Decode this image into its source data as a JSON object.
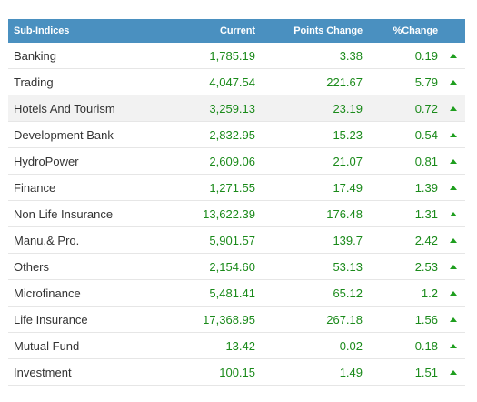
{
  "table": {
    "headers": {
      "name": "Sub-Indices",
      "current": "Current",
      "points_change": "Points Change",
      "pct_change": "%Change"
    },
    "trend_icon": "up-arrow-icon",
    "up_color": "#1e9e1e",
    "header_color": "#4a90c0",
    "rows": [
      {
        "name": "Banking",
        "current": "1,785.19",
        "points": "3.38",
        "pct": "0.19"
      },
      {
        "name": "Trading",
        "current": "4,047.54",
        "points": "221.67",
        "pct": "5.79"
      },
      {
        "name": "Hotels And Tourism",
        "current": "3,259.13",
        "points": "23.19",
        "pct": "0.72"
      },
      {
        "name": "Development Bank",
        "current": "2,832.95",
        "points": "15.23",
        "pct": "0.54"
      },
      {
        "name": "HydroPower",
        "current": "2,609.06",
        "points": "21.07",
        "pct": "0.81"
      },
      {
        "name": "Finance",
        "current": "1,271.55",
        "points": "17.49",
        "pct": "1.39"
      },
      {
        "name": "Non Life Insurance",
        "current": "13,622.39",
        "points": "176.48",
        "pct": "1.31"
      },
      {
        "name": "Manu.& Pro.",
        "current": "5,901.57",
        "points": "139.7",
        "pct": "2.42"
      },
      {
        "name": "Others",
        "current": "2,154.60",
        "points": "53.13",
        "pct": "2.53"
      },
      {
        "name": "Microfinance",
        "current": "5,481.41",
        "points": "65.12",
        "pct": "1.2"
      },
      {
        "name": "Life Insurance",
        "current": "17,368.95",
        "points": "267.18",
        "pct": "1.56"
      },
      {
        "name": "Mutual Fund",
        "current": "13.42",
        "points": "0.02",
        "pct": "0.18"
      },
      {
        "name": "Investment",
        "current": "100.15",
        "points": "1.49",
        "pct": "1.51"
      }
    ]
  }
}
